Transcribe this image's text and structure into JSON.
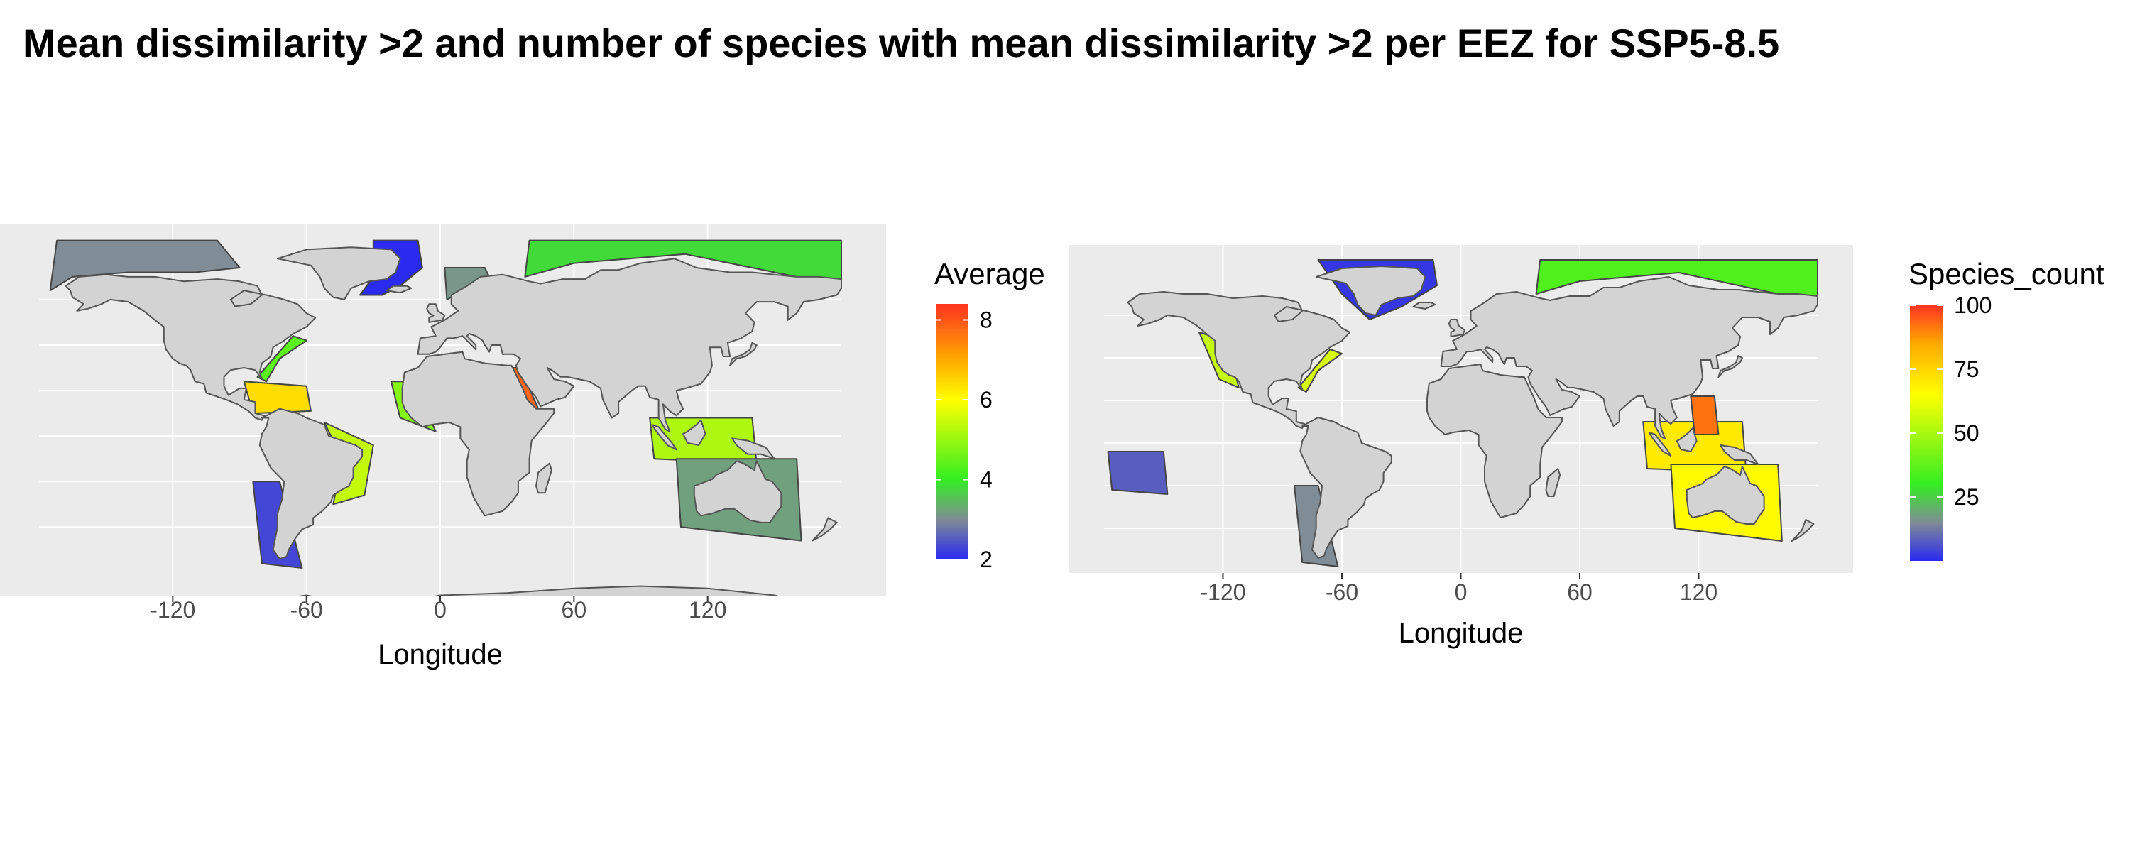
{
  "title": "Mean dissimilarity >2 and number of species with mean dissimilarity >2 per EEZ for SSP5-8.5",
  "colors": {
    "panel_bg": "#ebebeb",
    "grid": "#ffffff",
    "land": "#d3d3d3",
    "coast": "#555555"
  },
  "maps": [
    {
      "xlabel": "Longitude",
      "x_ticks": [
        -120,
        -60,
        0,
        60,
        120
      ],
      "legend": {
        "title": "Average",
        "labels": [
          "8",
          "6",
          "4",
          "2"
        ],
        "min": 2,
        "max": 8.4,
        "stops": [
          {
            "value": 2,
            "color": "#2a2af0"
          },
          {
            "value": 3,
            "color": "#808c96"
          },
          {
            "value": 4,
            "color": "#33ee22"
          },
          {
            "value": 6,
            "color": "#ffff00"
          },
          {
            "value": 7,
            "color": "#ffaa00"
          },
          {
            "value": 8.4,
            "color": "#ff3322"
          }
        ]
      },
      "regions": [
        {
          "name": "Greenland-east",
          "value": 2.0
        },
        {
          "name": "Alaska-Canada Arctic",
          "value": 3.0
        },
        {
          "name": "Russia Arctic",
          "value": 3.8
        },
        {
          "name": "Norway",
          "value": 3.1
        },
        {
          "name": "US East coast",
          "value": 4.4
        },
        {
          "name": "Caribbean",
          "value": 6.4
        },
        {
          "name": "Brazil",
          "value": 5.4
        },
        {
          "name": "West Africa",
          "value": 4.8
        },
        {
          "name": "Red Sea",
          "value": 7.8
        },
        {
          "name": "Indonesia",
          "value": 5.2
        },
        {
          "name": "Australia",
          "value": 3.2
        },
        {
          "name": "Chile",
          "value": 2.3
        }
      ]
    },
    {
      "xlabel": "Longitude",
      "x_ticks": [
        -120,
        -60,
        0,
        60,
        120
      ],
      "legend": {
        "title": "Species_count",
        "labels": [
          "100",
          "75",
          "50",
          "25"
        ],
        "min": 0,
        "max": 100,
        "stops": [
          {
            "value": 0,
            "color": "#2a2af0"
          },
          {
            "value": 15,
            "color": "#808c96"
          },
          {
            "value": 30,
            "color": "#33ee22"
          },
          {
            "value": 65,
            "color": "#ffff00"
          },
          {
            "value": 85,
            "color": "#ffaa00"
          },
          {
            "value": 100,
            "color": "#ff3322"
          }
        ]
      },
      "regions": [
        {
          "name": "Greenland",
          "value": 2
        },
        {
          "name": "Russia Arctic",
          "value": 35
        },
        {
          "name": "US West coast",
          "value": 55
        },
        {
          "name": "US East coast",
          "value": 58
        },
        {
          "name": "Indonesia",
          "value": 70
        },
        {
          "name": "Australia",
          "value": 66
        },
        {
          "name": "Philippines",
          "value": 92
        },
        {
          "name": "Chile",
          "value": 15
        },
        {
          "name": "Pacific islands",
          "value": 8
        }
      ]
    }
  ]
}
